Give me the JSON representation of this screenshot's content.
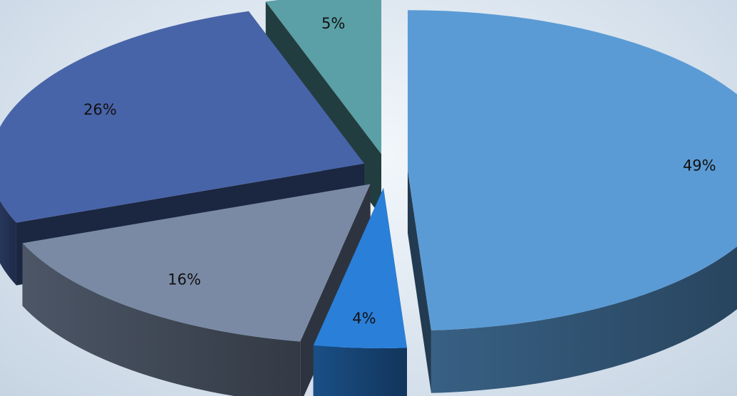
{
  "chart_data": {
    "type": "pie",
    "values": [
      49,
      4,
      16,
      26,
      5
    ],
    "labels": [
      "49%",
      "4%",
      "16%",
      "26%",
      "5%"
    ],
    "colors": [
      "#5b9bd5",
      "#2a7fd8",
      "#7a8aa5",
      "#4864a8",
      "#5aa0a6"
    ],
    "title": "",
    "legend": "none",
    "exploded": true,
    "style": "3d"
  }
}
